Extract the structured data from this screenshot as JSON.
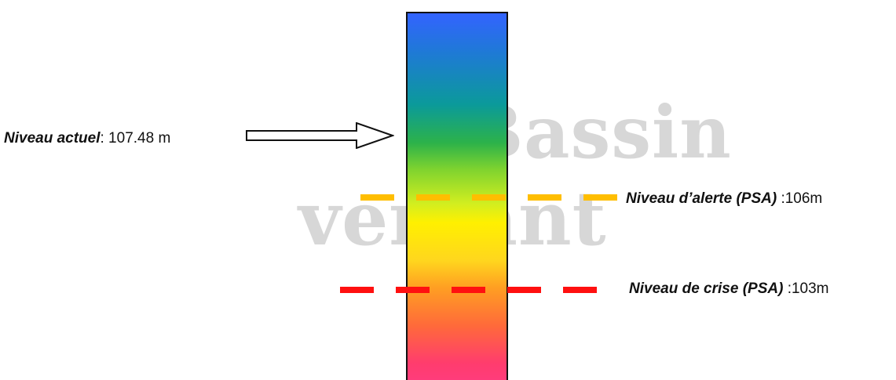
{
  "watermark": {
    "line_1": "Bassin",
    "line_2": "versant"
  },
  "current_level": {
    "label": "Niveau actuel",
    "value_text": ": 107.48 m",
    "value": 107.48,
    "unit": "m"
  },
  "alert_level": {
    "label": "Niveau d’alerte (PSA)",
    "value_text": ":106m",
    "value": 106,
    "unit": "m",
    "color": "#ffbe00"
  },
  "crisis_level": {
    "label": "Niveau de crise (PSA)",
    "value_text": ":103m",
    "value": 103,
    "unit": "m",
    "color": "#ff1010"
  },
  "gauge": {
    "colors": {
      "top": "#3363ff",
      "upper": "#0b9a9a",
      "middle": "#fff000",
      "lower": "#ff6a3a",
      "bottom": "#ff3c86"
    }
  }
}
